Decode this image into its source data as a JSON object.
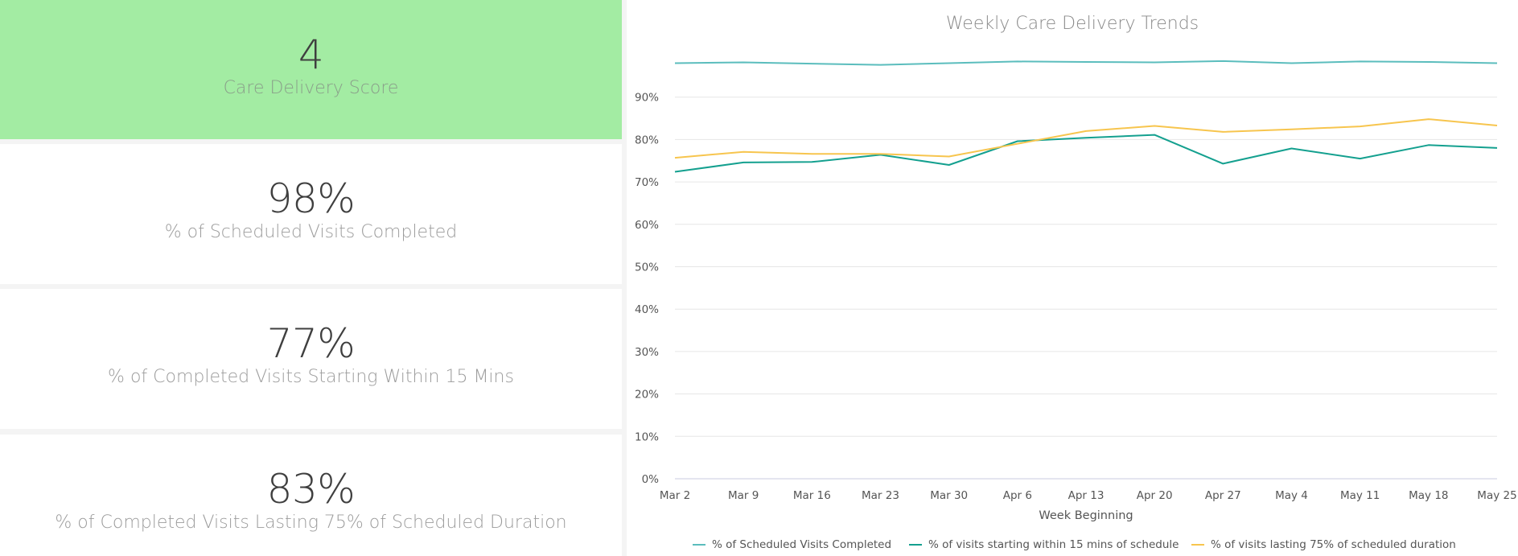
{
  "kpis": [
    {
      "value": "4",
      "label": "Care Delivery Score",
      "highlight": true
    },
    {
      "value": "98%",
      "label": "% of Scheduled Visits Completed"
    },
    {
      "value": "77%",
      "label": "% of Completed Visits Starting Within 15 Mins"
    },
    {
      "value": "83%",
      "label": "% of Completed Visits Lasting 75% of Scheduled Duration"
    }
  ],
  "colors": {
    "highlight_bg": "#a3eca3",
    "series": [
      "#5bbdbd",
      "#14a08f",
      "#f7c54e"
    ]
  },
  "chart_data": {
    "type": "line",
    "title": "Weekly Care Delivery Trends",
    "xlabel": "Week Beginning",
    "ylabel": "",
    "categories": [
      "Mar 2",
      "Mar 9",
      "Mar 16",
      "Mar 23",
      "Mar 30",
      "Apr 6",
      "Apr 13",
      "Apr 20",
      "Apr 27",
      "May 4",
      "May 11",
      "May 18",
      "May 25"
    ],
    "ylim": [
      0,
      100
    ],
    "yticks": [
      "0%",
      "10%",
      "20%",
      "30%",
      "40%",
      "50%",
      "60%",
      "70%",
      "80%",
      "90%"
    ],
    "grid": true,
    "legend_position": "bottom",
    "series": [
      {
        "name": "% of Scheduled Visits Completed",
        "values": [
          98.0,
          98.2,
          97.9,
          97.6,
          98.0,
          98.4,
          98.3,
          98.2,
          98.5,
          98.0,
          98.4,
          98.3,
          98.0
        ]
      },
      {
        "name": "% of visits starting within 15 mins of schedule",
        "values": [
          72.4,
          74.6,
          74.7,
          76.4,
          74.0,
          79.6,
          80.4,
          81.1,
          74.3,
          77.9,
          75.5,
          78.7,
          78.0
        ]
      },
      {
        "name": "% of visits lasting 75% of scheduled duration",
        "values": [
          75.7,
          77.1,
          76.6,
          76.6,
          76.0,
          79.0,
          82.0,
          83.2,
          81.8,
          82.4,
          83.1,
          84.8,
          83.3
        ]
      }
    ]
  }
}
